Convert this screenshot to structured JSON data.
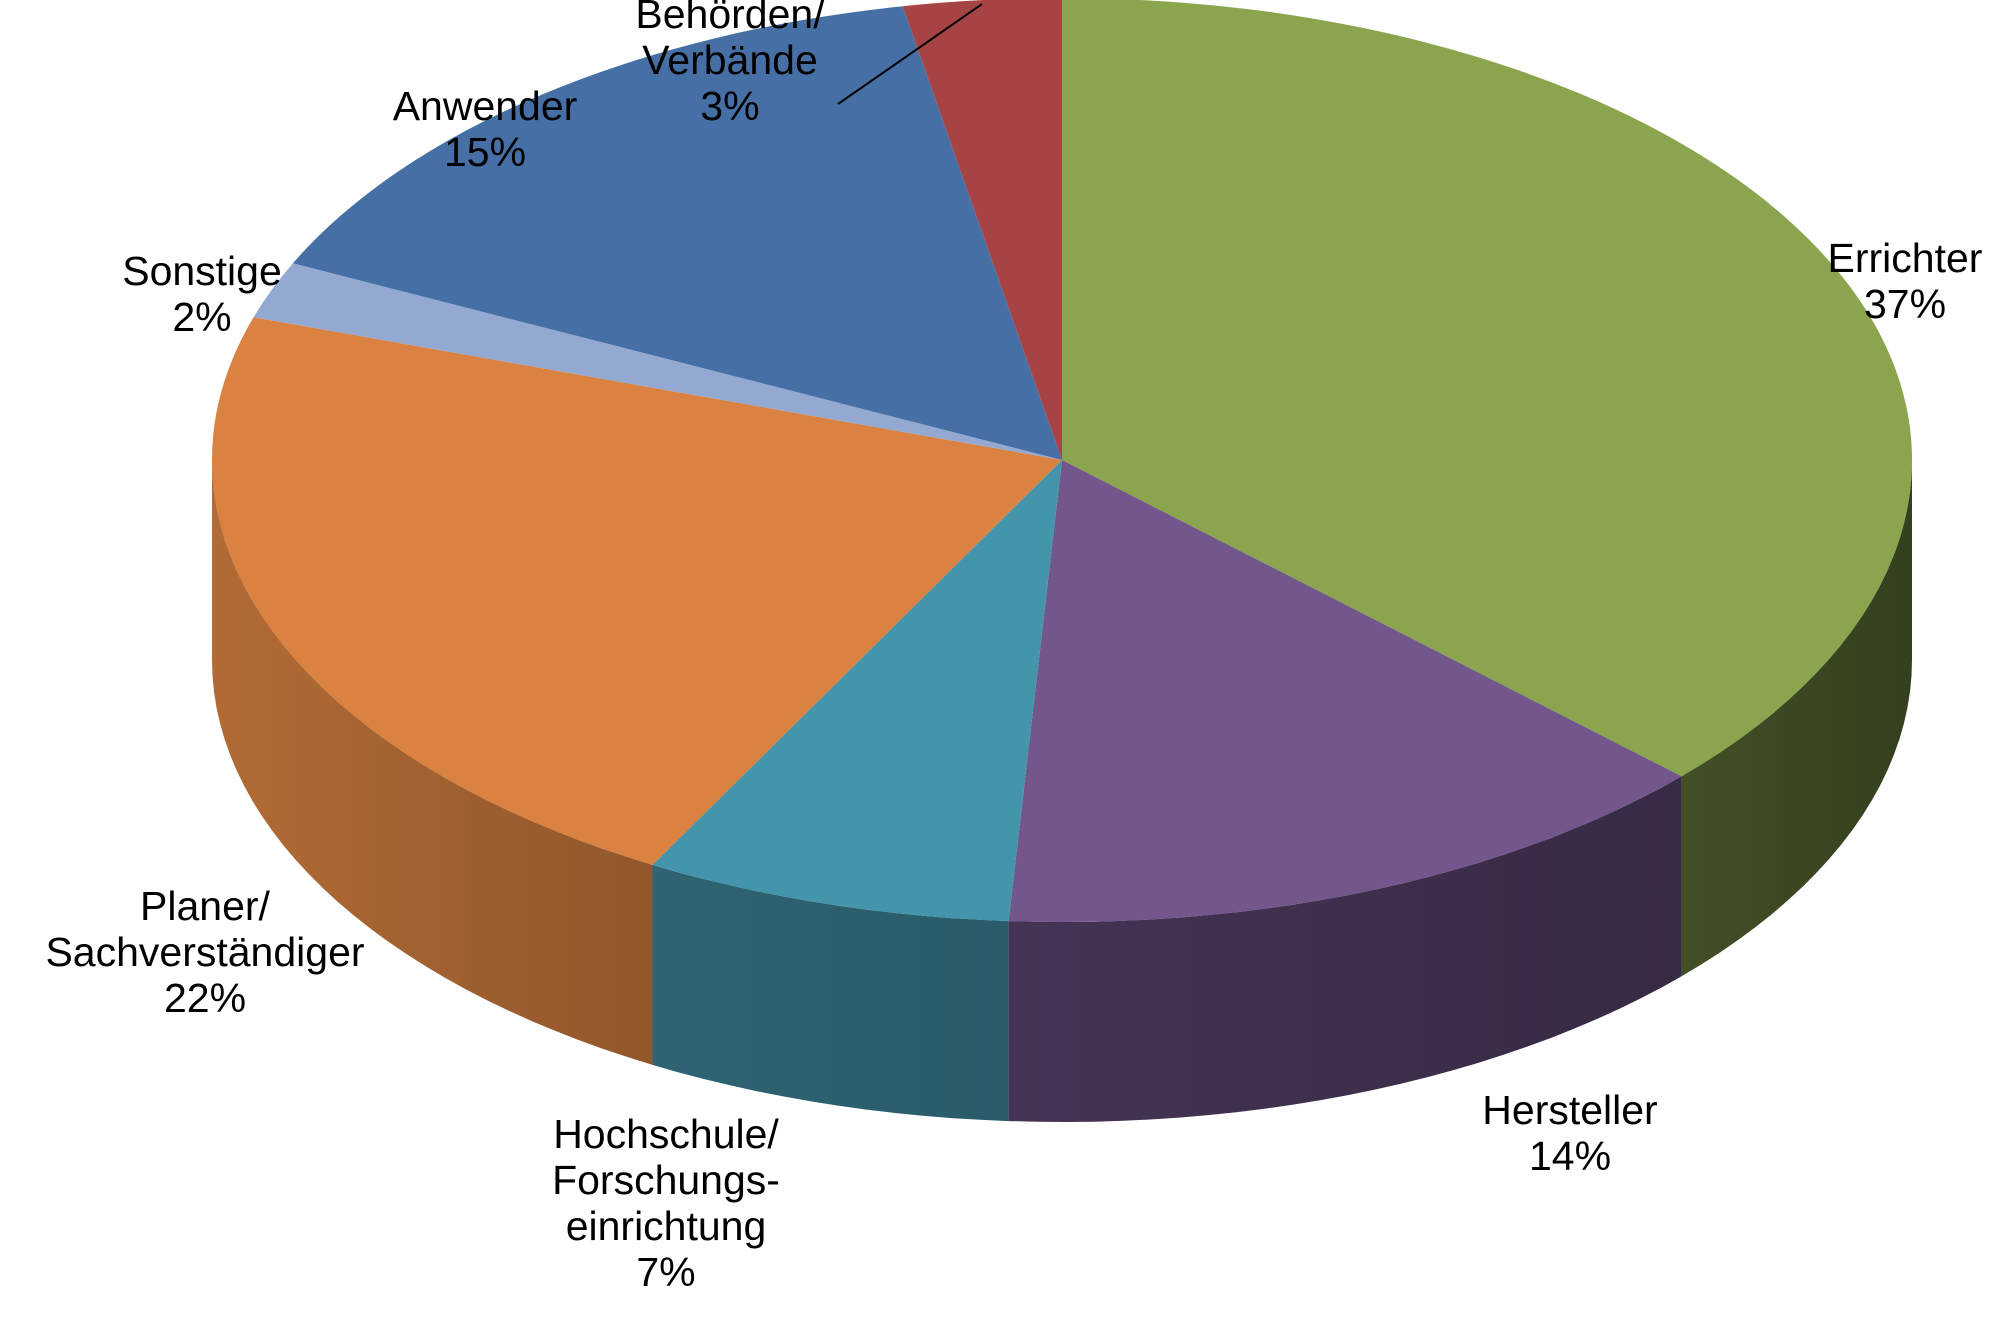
{
  "chart_data": {
    "type": "pie",
    "style": "3d",
    "start": "12 o'clock",
    "direction": "clockwise",
    "slices": [
      {
        "label_lines": [
          "Errichter"
        ],
        "pct_label": "37%",
        "value": 37,
        "color": "#8aa54e"
      },
      {
        "label_lines": [
          "Hersteller"
        ],
        "pct_label": "14%",
        "value": 14,
        "color": "#72568c"
      },
      {
        "label_lines": [
          "Hochschule/",
          "Forschungs-",
          "einrichtung"
        ],
        "pct_label": "7%",
        "value": 7,
        "color": "#4495ac"
      },
      {
        "label_lines": [
          "Planer/",
          "Sachverständiger"
        ],
        "pct_label": "22%",
        "value": 22,
        "color": "#d98241"
      },
      {
        "label_lines": [
          "Sonstige"
        ],
        "pct_label": "2%",
        "value": 2,
        "color": "#93a9d2"
      },
      {
        "label_lines": [
          "Anwender"
        ],
        "pct_label": "15%",
        "value": 15,
        "color": "#4670a5"
      },
      {
        "label_lines": [
          "Behörden/",
          "Verbände"
        ],
        "pct_label": "3%",
        "value": 3,
        "color": "#a64445"
      }
    ]
  }
}
